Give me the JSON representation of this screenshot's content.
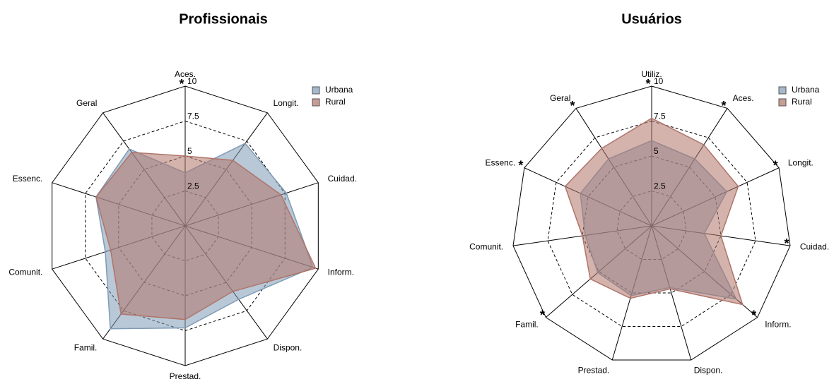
{
  "chart_data": [
    {
      "type": "radar",
      "title": "Profissionais",
      "categories": [
        "Aces.",
        "Longit.",
        "Cuidad.",
        "Inform.",
        "Dispon.",
        "Prestad.",
        "Famil.",
        "Comunit.",
        "Essenc.",
        "Geral"
      ],
      "significance": [
        "*",
        null,
        null,
        null,
        null,
        null,
        null,
        null,
        null,
        null
      ],
      "series": [
        {
          "name": "Urbana",
          "color": "#7f9bb5",
          "values": [
            3.8,
            7.3,
            7.6,
            9.6,
            6.5,
            7.3,
            9.1,
            6.0,
            6.7,
            6.8
          ]
        },
        {
          "name": "Rural",
          "color": "#b0746a",
          "values": [
            5.0,
            5.8,
            7.2,
            9.8,
            5.8,
            6.7,
            7.8,
            5.6,
            6.7,
            6.5
          ]
        }
      ],
      "rlim": [
        0,
        10
      ],
      "rticks": [
        2.5,
        5,
        7.5,
        10
      ]
    },
    {
      "type": "radar",
      "title": "Usuários",
      "categories": [
        "Utiliz.",
        "Aces.",
        "Longit.",
        "Cuidad.",
        "Inform.",
        "Dispon.",
        "Prestad.",
        "Famil.",
        "Comunit.",
        "Essenc.",
        "Geral"
      ],
      "significance": [
        "*",
        "*",
        "*",
        "*",
        "*",
        null,
        null,
        "*",
        null,
        "*",
        "*"
      ],
      "series": [
        {
          "name": "Urbana",
          "color": "#7f9bb5",
          "values": [
            6.1,
            5.7,
            5.9,
            3.8,
            8.0,
            4.6,
            5.2,
            5.1,
            4.8,
            5.6,
            5.7
          ]
        },
        {
          "name": "Rural",
          "color": "#b0746a",
          "values": [
            7.7,
            6.9,
            6.8,
            5.0,
            8.6,
            4.7,
            5.4,
            5.8,
            5.0,
            6.8,
            6.6
          ]
        }
      ],
      "rlim": [
        0,
        10
      ],
      "rticks": [
        2.5,
        5,
        7.5,
        10
      ]
    }
  ]
}
